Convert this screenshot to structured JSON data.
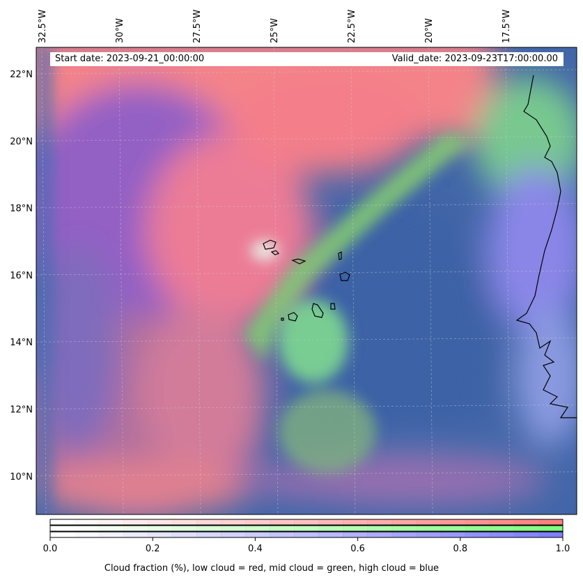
{
  "header": {
    "start_date": "Start date: 2023-09-21_00:00:00",
    "valid_date": "Valid_date: 2023-09-23T17:00:00.00"
  },
  "axes": {
    "lon_ticks": [
      {
        "value": -32.5,
        "label": "32.5°W"
      },
      {
        "value": -30,
        "label": "30°W"
      },
      {
        "value": -27.5,
        "label": "27.5°W"
      },
      {
        "value": -25,
        "label": "25°W"
      },
      {
        "value": -22.5,
        "label": "22.5°W"
      },
      {
        "value": -20,
        "label": "20°W"
      },
      {
        "value": -17.5,
        "label": "17.5°W"
      }
    ],
    "lat_ticks": [
      {
        "value": 22,
        "label": "22°N"
      },
      {
        "value": 20,
        "label": "20°N"
      },
      {
        "value": 18,
        "label": "18°N"
      },
      {
        "value": 16,
        "label": "16°N"
      },
      {
        "value": 14,
        "label": "14°N"
      },
      {
        "value": 12,
        "label": "12°N"
      },
      {
        "value": 10,
        "label": "10°N"
      }
    ]
  },
  "colorbar": {
    "label": "Cloud fraction (%), low cloud = red, mid cloud = green, high cloud = blue",
    "range": [
      0,
      1
    ],
    "ticks": [
      {
        "value": 0.0,
        "label": "0.0"
      },
      {
        "value": 0.2,
        "label": "0.2"
      },
      {
        "value": 0.4,
        "label": "0.4"
      },
      {
        "value": 0.6,
        "label": "0.6"
      },
      {
        "value": 0.8,
        "label": "0.8"
      },
      {
        "value": 1.0,
        "label": "1.0"
      }
    ],
    "levels": 21,
    "colors": {
      "low": "#ff7f7f",
      "mid": "#7fff7f",
      "high": "#7f7fff"
    }
  }
}
